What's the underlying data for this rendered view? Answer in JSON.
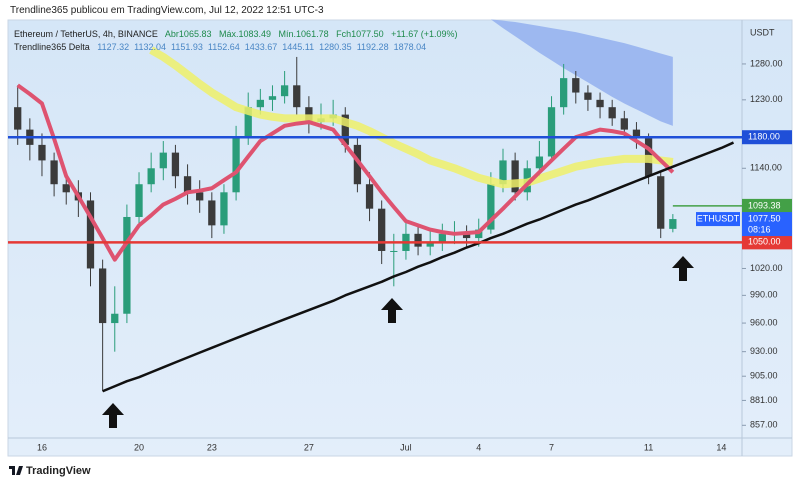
{
  "title": "Trendline365 publicou em TradingView.com, Jul 12, 2022 12:51 UTC-3",
  "footer": "TradingView",
  "chart_data": {
    "type": "candlestick",
    "symbol": "Ethereum / TetherUS, 4h, BINANCE",
    "ohlc_labels": [
      "Abr1065.83",
      "Máx.1083.49",
      "Mín.1061.78",
      "Fch1077.50"
    ],
    "change": "+11.67 (+1.09%)",
    "indicator": {
      "name": "Trendline365 Delta",
      "values": [
        1127.32,
        1132.04,
        1151.93,
        1152.64,
        1433.67,
        1445.11,
        1280.35,
        1192.28,
        1878.04
      ]
    },
    "currency": "USDT",
    "symbol_tag": "ETHUSDT",
    "countdown": "08:16",
    "log_scale": true,
    "up_color": "#2a9d7a",
    "down_color": "#3b3b3b",
    "categories": [
      null,
      null,
      "16",
      null,
      null,
      null,
      null,
      null,
      null,
      null,
      "20",
      null,
      null,
      null,
      null,
      null,
      "23",
      null,
      null,
      null,
      null,
      null,
      null,
      null,
      "27",
      null,
      null,
      null,
      null,
      null,
      null,
      null,
      "Jul",
      null,
      null,
      null,
      null,
      null,
      "4",
      null,
      null,
      null,
      null,
      null,
      "7",
      null,
      null,
      null,
      null,
      null,
      null,
      null,
      "11",
      null,
      null,
      null,
      null,
      null,
      "14",
      null
    ],
    "open": [
      1220,
      1190,
      1170,
      1150,
      1120,
      1110,
      1100,
      1020,
      960,
      970,
      1080,
      1120,
      1140,
      1160,
      1130,
      1110,
      1100,
      1070,
      1110,
      1180,
      1220,
      1230,
      1235,
      1250,
      1220,
      1200,
      1205,
      1210,
      1170,
      1120,
      1090,
      1040,
      1040,
      1060,
      1045,
      1050,
      1060,
      1062,
      1055,
      1065,
      1120,
      1150,
      1110,
      1140,
      1155,
      1220,
      1260,
      1240,
      1230,
      1220,
      1205,
      1190,
      1180,
      1130,
      1065.83,
      null,
      null,
      null,
      null,
      null
    ],
    "high": [
      1250,
      1205,
      1185,
      1160,
      1135,
      1125,
      1110,
      1030,
      1000,
      1095,
      1135,
      1160,
      1175,
      1170,
      1145,
      1125,
      1110,
      1120,
      1195,
      1240,
      1245,
      1250,
      1270,
      1290,
      1235,
      1225,
      1230,
      1220,
      1180,
      1135,
      1100,
      1060,
      1075,
      1070,
      1065,
      1072,
      1075,
      1070,
      1078,
      1135,
      1165,
      1160,
      1150,
      1175,
      1235,
      1280,
      1270,
      1250,
      1240,
      1230,
      1215,
      1200,
      1185,
      1135,
      1083.49,
      null,
      null,
      null,
      null,
      null
    ],
    "low": [
      1170,
      1150,
      1130,
      1105,
      1095,
      1080,
      1000,
      890,
      930,
      960,
      1070,
      1110,
      1125,
      1115,
      1095,
      1085,
      1055,
      1060,
      1100,
      1170,
      1210,
      1215,
      1225,
      1210,
      1185,
      1190,
      1195,
      1160,
      1110,
      1075,
      1025,
      1000,
      1030,
      1035,
      1035,
      1040,
      1048,
      1045,
      1045,
      1060,
      1110,
      1100,
      1100,
      1130,
      1150,
      1210,
      1225,
      1215,
      1205,
      1195,
      1180,
      1165,
      1120,
      1055,
      1061.78,
      null,
      null,
      null,
      null,
      null
    ],
    "close": [
      1190,
      1170,
      1150,
      1120,
      1110,
      1100,
      1020,
      960,
      970,
      1080,
      1120,
      1140,
      1160,
      1130,
      1110,
      1100,
      1070,
      1110,
      1180,
      1220,
      1230,
      1235,
      1250,
      1220,
      1200,
      1205,
      1210,
      1170,
      1120,
      1090,
      1040,
      1040,
      1060,
      1045,
      1050,
      1060,
      1062,
      1055,
      1065,
      1120,
      1150,
      1110,
      1140,
      1155,
      1220,
      1260,
      1240,
      1230,
      1220,
      1205,
      1190,
      1180,
      1130,
      1066,
      1077.5,
      null,
      null,
      null,
      null,
      null
    ],
    "cloud": {
      "color": "#8aa8ee",
      "upper": [
        null,
        null,
        null,
        null,
        null,
        null,
        null,
        null,
        null,
        null,
        null,
        null,
        null,
        null,
        null,
        null,
        null,
        null,
        null,
        null,
        null,
        null,
        null,
        null,
        null,
        null,
        null,
        null,
        null,
        null,
        null,
        null,
        null,
        null,
        null,
        null,
        null,
        null,
        null,
        1345,
        1343,
        1341,
        1338,
        1335,
        1332,
        1329,
        1326,
        1322,
        1318,
        1314,
        1310,
        1305,
        1300,
        1295,
        1290,
        null,
        null,
        null,
        null,
        null
      ],
      "lower": [
        null,
        null,
        null,
        null,
        null,
        null,
        null,
        null,
        null,
        null,
        null,
        null,
        null,
        null,
        null,
        null,
        null,
        null,
        null,
        null,
        null,
        null,
        null,
        null,
        null,
        null,
        null,
        null,
        null,
        null,
        null,
        null,
        null,
        null,
        null,
        null,
        null,
        null,
        null,
        1345,
        1332,
        1320,
        1308,
        1296,
        1285,
        1274,
        1264,
        1254,
        1244,
        1234,
        1225,
        1217,
        1209,
        1201,
        1195,
        null,
        null,
        null,
        null,
        null
      ]
    },
    "lines": [
      {
        "color": "#eef06a",
        "width": 8,
        "values": [
          null,
          null,
          null,
          null,
          null,
          null,
          null,
          null,
          null,
          null,
          null,
          1300,
          1290,
          1278,
          1265,
          1252,
          1240,
          1230,
          1220,
          1215,
          1210,
          1207,
          1205,
          1205,
          1205,
          1205,
          1205,
          1200,
          1195,
          1188,
          1180,
          1172,
          1165,
          1158,
          1150,
          1145,
          1140,
          1134,
          1128,
          1124,
          1120,
          1121,
          1122,
          1127,
          1132,
          1137,
          1142,
          1145,
          1148,
          1150,
          1152,
          1152,
          1152,
          1150,
          1148,
          null,
          null,
          null,
          null,
          null
        ]
      },
      {
        "color": "#de5370",
        "width": 4,
        "values": [
          1250,
          1238,
          1225,
          1178,
          1130,
          1105,
          1080,
          1055,
          1030,
          1050,
          1070,
          1082,
          1095,
          1102,
          1110,
          1112,
          1115,
          1125,
          1135,
          1155,
          1175,
          1185,
          1195,
          1198,
          1200,
          1195,
          1190,
          1170,
          1150,
          1130,
          1110,
          1092,
          1075,
          1070,
          1065,
          1062,
          1060,
          1061,
          1062,
          1076,
          1090,
          1105,
          1120,
          1135,
          1150,
          1165,
          1180,
          1185,
          1190,
          1188,
          1185,
          1175,
          1165,
          1150,
          1135,
          null,
          null,
          null,
          null,
          null
        ]
      },
      {
        "color": "#111111",
        "width": 2.5,
        "values": [
          null,
          null,
          null,
          null,
          null,
          null,
          null,
          890,
          895,
          900,
          904,
          909,
          914,
          919,
          924,
          929,
          934,
          939,
          944,
          949,
          954,
          959,
          964,
          969,
          974,
          979,
          984,
          990,
          995,
          1000,
          1005,
          1011,
          1016,
          1022,
          1027,
          1033,
          1038,
          1044,
          1049,
          1055,
          1060,
          1066,
          1072,
          1077,
          1083,
          1089,
          1095,
          1100,
          1106,
          1112,
          1118,
          1124,
          1130,
          1136,
          1142,
          1148,
          1154,
          1160,
          1166,
          1173
        ]
      }
    ],
    "hlines": [
      {
        "value": 1180,
        "label": "1180.00",
        "color": "#1f4fd8"
      },
      {
        "value": 1050,
        "label": "1050.00",
        "color": "#e53935"
      }
    ],
    "price_tags": [
      {
        "value": 1093.38,
        "label": "1093.38",
        "color": "#43a047"
      },
      {
        "value": 1077.5,
        "label": "1077.50",
        "color": "#2962ff"
      }
    ],
    "ylim": [
      845,
      1344
    ],
    "yticks": [
      {
        "value": 857,
        "label": "857.00"
      },
      {
        "value": 881,
        "label": "881.00"
      },
      {
        "value": 905,
        "label": "905.00"
      },
      {
        "value": 930,
        "label": "930.00"
      },
      {
        "value": 960,
        "label": "960.00"
      },
      {
        "value": 990,
        "label": "990.00"
      },
      {
        "value": 1020,
        "label": "1020.00"
      },
      {
        "value": 1140,
        "label": "1140.00"
      },
      {
        "value": 1230,
        "label": "1230.00"
      },
      {
        "value": 1280,
        "label": "1280.00"
      }
    ],
    "grid": false
  }
}
